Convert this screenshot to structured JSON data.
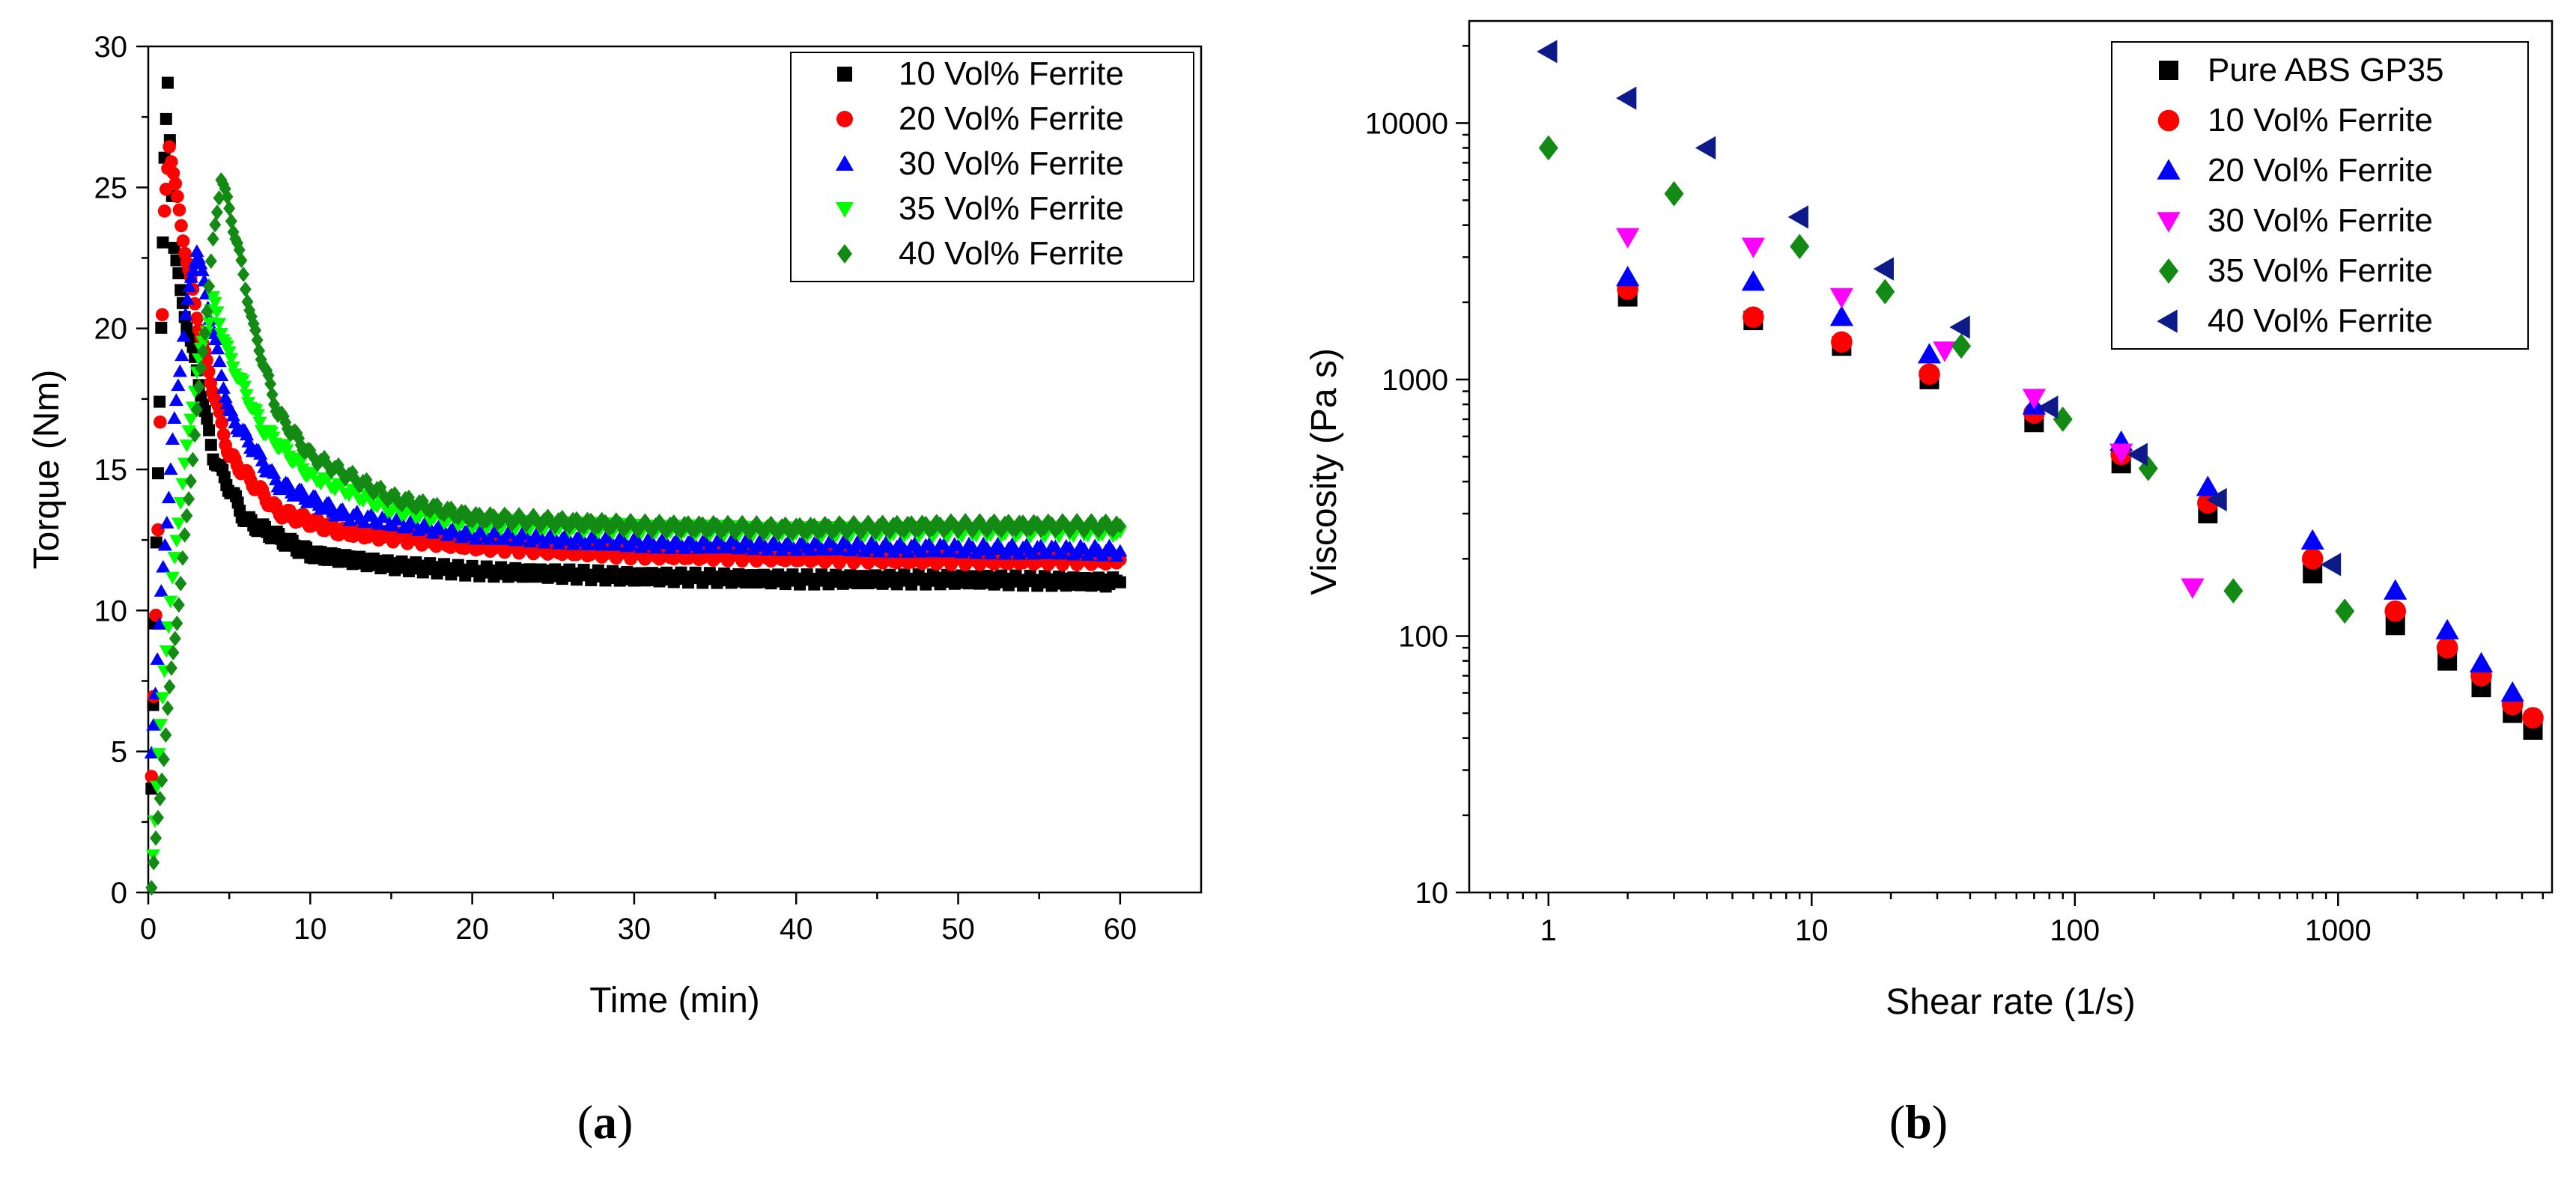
{
  "chart_data": [
    {
      "id": "a",
      "type": "scatter",
      "panel_label": "a",
      "title": "",
      "xlabel": "Time (min)",
      "ylabel": "Torque (Nm)",
      "xlim": [
        0,
        65
      ],
      "ylim": [
        0,
        30
      ],
      "xticks": [
        0,
        10,
        20,
        30,
        40,
        50,
        60
      ],
      "yticks": [
        0,
        5,
        10,
        15,
        20,
        25,
        30
      ],
      "grid": false,
      "legend_position": "top-right",
      "series": [
        {
          "name": "10 Vol% Ferrite",
          "color": "#000000",
          "marker": "square",
          "peak_time": 1.2,
          "peak": 28.6,
          "tau": 2.5,
          "plateau": 11.1,
          "points": [
            [
              0.2,
              3.5
            ],
            [
              0.5,
              12.5
            ],
            [
              0.8,
              20.1
            ],
            [
              1.0,
              25.9
            ],
            [
              1.2,
              28.6
            ],
            [
              1.6,
              23.0
            ],
            [
              2.0,
              21.2
            ],
            [
              3.0,
              18.5
            ],
            [
              4.0,
              15.5
            ],
            [
              6.0,
              13.2
            ],
            [
              10.0,
              12.0
            ],
            [
              15.0,
              11.6
            ],
            [
              20.0,
              11.4
            ],
            [
              30.0,
              11.2
            ],
            [
              40.0,
              11.1
            ],
            [
              50.0,
              11.1
            ],
            [
              60.0,
              11.0
            ]
          ]
        },
        {
          "name": "20 Vol% Ferrite",
          "color": "#ff0000",
          "marker": "circle",
          "peak_time": 1.3,
          "peak": 26.6,
          "tau": 3.0,
          "plateau": 11.8,
          "points": [
            [
              0.2,
              4.0
            ],
            [
              0.6,
              13.0
            ],
            [
              1.0,
              24.0
            ],
            [
              1.3,
              26.6
            ],
            [
              1.8,
              24.5
            ],
            [
              2.5,
              22.0
            ],
            [
              3.5,
              19.0
            ],
            [
              5.0,
              15.5
            ],
            [
              8.0,
              13.5
            ],
            [
              12.0,
              12.8
            ],
            [
              20.0,
              12.3
            ],
            [
              30.0,
              12.0
            ],
            [
              40.0,
              11.9
            ],
            [
              50.0,
              11.8
            ],
            [
              60.0,
              11.8
            ]
          ]
        },
        {
          "name": "30 Vol% Ferrite",
          "color": "#0000ff",
          "marker": "triangle-up",
          "peak_time": 3.0,
          "peak": 22.9,
          "tau": 3.5,
          "plateau": 12.2,
          "points": [
            [
              0.2,
              5.0
            ],
            [
              0.8,
              10.5
            ],
            [
              1.5,
              16.0
            ],
            [
              2.3,
              20.5
            ],
            [
              3.0,
              22.9
            ],
            [
              3.8,
              20.5
            ],
            [
              5.0,
              17.0
            ],
            [
              8.0,
              14.5
            ],
            [
              12.0,
              13.4
            ],
            [
              20.0,
              12.7
            ],
            [
              30.0,
              12.4
            ],
            [
              40.0,
              12.3
            ],
            [
              50.0,
              12.2
            ],
            [
              60.0,
              12.1
            ]
          ]
        },
        {
          "name": "35 Vol% Ferrite",
          "color": "#00ff00",
          "marker": "triangle-down",
          "peak_time": 4.0,
          "peak": 21.0,
          "tau": 4.0,
          "plateau": 12.8,
          "points": [
            [
              0.3,
              1.5
            ],
            [
              1.0,
              8.0
            ],
            [
              2.0,
              14.0
            ],
            [
              3.0,
              18.5
            ],
            [
              4.0,
              21.0
            ],
            [
              5.0,
              19.0
            ],
            [
              7.0,
              16.5
            ],
            [
              10.0,
              14.8
            ],
            [
              15.0,
              13.6
            ],
            [
              20.0,
              13.1
            ],
            [
              30.0,
              12.9
            ],
            [
              40.0,
              12.8
            ],
            [
              50.0,
              12.8
            ],
            [
              60.0,
              12.8
            ]
          ]
        },
        {
          "name": "40 Vol% Ferrite",
          "color": "#138a13",
          "marker": "diamond",
          "peak_time": 4.5,
          "peak": 25.4,
          "tau": 4.0,
          "plateau": 13.0,
          "points": [
            [
              0.2,
              0.3
            ],
            [
              0.6,
              2.5
            ],
            [
              1.2,
              6.5
            ],
            [
              2.0,
              11.0
            ],
            [
              3.0,
              17.0
            ],
            [
              4.0,
              23.0
            ],
            [
              4.5,
              25.4
            ],
            [
              5.5,
              23.0
            ],
            [
              6.5,
              20.0
            ],
            [
              8.0,
              17.0
            ],
            [
              10.0,
              15.5
            ],
            [
              15.0,
              14.0
            ],
            [
              20.0,
              13.3
            ],
            [
              30.0,
              13.0
            ],
            [
              40.0,
              12.9
            ],
            [
              50.0,
              13.0
            ],
            [
              60.0,
              13.0
            ]
          ]
        }
      ]
    },
    {
      "id": "b",
      "type": "scatter",
      "panel_label": "b",
      "title": "",
      "xlabel": "Shear rate (1/s)",
      "ylabel": "Viscosity (Pa s)",
      "xscale": "log",
      "yscale": "log",
      "xlim": [
        0.5,
        6500
      ],
      "ylim": [
        10,
        25000
      ],
      "xticks": [
        1,
        10,
        100,
        1000
      ],
      "xtick_labels": [
        "1",
        "10",
        "100",
        "1000"
      ],
      "yticks": [
        10,
        100,
        1000,
        10000
      ],
      "ytick_labels": [
        "10",
        "100",
        "1000",
        "10000"
      ],
      "grid": false,
      "legend_position": "top-right",
      "series": [
        {
          "name": "Pure ABS GP35",
          "color": "#000000",
          "marker": "square",
          "points": [
            [
              2,
              2100
            ],
            [
              6,
              1700
            ],
            [
              13,
              1350
            ],
            [
              28,
              1000
            ],
            [
              70,
              680
            ],
            [
              150,
              470
            ],
            [
              320,
              300
            ],
            [
              800,
              175
            ],
            [
              1650,
              110
            ],
            [
              2600,
              80
            ],
            [
              3500,
              63
            ],
            [
              4600,
              50
            ],
            [
              5500,
              43
            ]
          ]
        },
        {
          "name": "10 Vol% Ferrite",
          "color": "#ff0000",
          "marker": "circle",
          "points": [
            [
              2,
              2250
            ],
            [
              6,
              1750
            ],
            [
              13,
              1400
            ],
            [
              28,
              1050
            ],
            [
              70,
              740
            ],
            [
              150,
              510
            ],
            [
              320,
              330
            ],
            [
              800,
              200
            ],
            [
              1650,
              125
            ],
            [
              2600,
              90
            ],
            [
              3500,
              70
            ],
            [
              4600,
              54
            ],
            [
              5500,
              48
            ]
          ]
        },
        {
          "name": "20 Vol% Ferrite",
          "color": "#0000ff",
          "marker": "triangle-up",
          "points": [
            [
              2,
              2500
            ],
            [
              6,
              2400
            ],
            [
              13,
              1750
            ],
            [
              28,
              1250
            ],
            [
              70,
              790
            ],
            [
              150,
              570
            ],
            [
              320,
              380
            ],
            [
              800,
              235
            ],
            [
              1650,
              150
            ],
            [
              2600,
              105
            ],
            [
              3500,
              78
            ],
            [
              4600,
              60
            ]
          ]
        },
        {
          "name": "30 Vol% Ferrite",
          "color": "#ff00ff",
          "marker": "triangle-down",
          "points": [
            [
              2,
              3600
            ],
            [
              6,
              3300
            ],
            [
              13,
              2100
            ],
            [
              32,
              1300
            ],
            [
              70,
              850
            ],
            [
              150,
              520
            ],
            [
              280,
              155
            ]
          ]
        },
        {
          "name": "35 Vol% Ferrite",
          "color": "#138a13",
          "marker": "diamond",
          "points": [
            [
              1,
              8000
            ],
            [
              3,
              5300
            ],
            [
              9,
              3300
            ],
            [
              19,
              2200
            ],
            [
              37,
              1350
            ],
            [
              90,
              700
            ],
            [
              190,
              450
            ],
            [
              400,
              150
            ],
            [
              1060,
              125
            ]
          ]
        },
        {
          "name": "40 Vol% Ferrite",
          "color": "#0d1a8a",
          "marker": "triangle-left",
          "points": [
            [
              1,
              19000
            ],
            [
              2,
              12500
            ],
            [
              4,
              8000
            ],
            [
              9,
              4300
            ],
            [
              19,
              2700
            ],
            [
              37,
              1600
            ],
            [
              80,
              780
            ],
            [
              175,
              510
            ],
            [
              350,
              340
            ],
            [
              950,
              190
            ]
          ]
        }
      ]
    }
  ]
}
